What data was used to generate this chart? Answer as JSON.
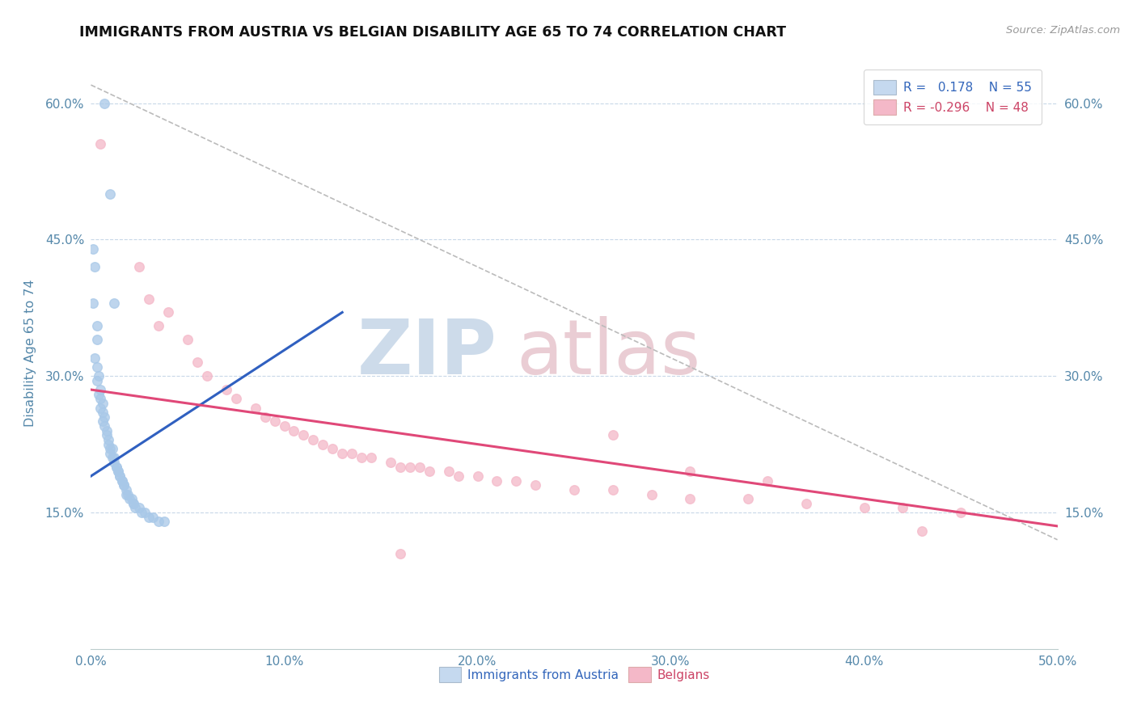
{
  "title": "IMMIGRANTS FROM AUSTRIA VS BELGIAN DISABILITY AGE 65 TO 74 CORRELATION CHART",
  "source": "Source: ZipAtlas.com",
  "ylabel": "Disability Age 65 to 74",
  "xlim": [
    0.0,
    0.5
  ],
  "ylim": [
    0.0,
    0.65
  ],
  "xtick_labels": [
    "0.0%",
    "10.0%",
    "20.0%",
    "30.0%",
    "40.0%",
    "50.0%"
  ],
  "xtick_vals": [
    0.0,
    0.1,
    0.2,
    0.3,
    0.4,
    0.5
  ],
  "ytick_labels": [
    "15.0%",
    "30.0%",
    "45.0%",
    "60.0%"
  ],
  "ytick_vals": [
    0.15,
    0.3,
    0.45,
    0.6
  ],
  "austria_color": "#a8c8e8",
  "belgian_color": "#f4b8c8",
  "austria_line_color": "#3060c0",
  "belgian_line_color": "#e04878",
  "austria_scatter": [
    [
      0.001,
      0.44
    ],
    [
      0.002,
      0.42
    ],
    [
      0.001,
      0.38
    ],
    [
      0.003,
      0.355
    ],
    [
      0.003,
      0.34
    ],
    [
      0.002,
      0.32
    ],
    [
      0.003,
      0.31
    ],
    [
      0.004,
      0.3
    ],
    [
      0.003,
      0.295
    ],
    [
      0.005,
      0.285
    ],
    [
      0.004,
      0.28
    ],
    [
      0.005,
      0.275
    ],
    [
      0.006,
      0.27
    ],
    [
      0.005,
      0.265
    ],
    [
      0.006,
      0.26
    ],
    [
      0.007,
      0.255
    ],
    [
      0.006,
      0.25
    ],
    [
      0.007,
      0.245
    ],
    [
      0.008,
      0.24
    ],
    [
      0.008,
      0.235
    ],
    [
      0.009,
      0.23
    ],
    [
      0.009,
      0.225
    ],
    [
      0.01,
      0.22
    ],
    [
      0.011,
      0.22
    ],
    [
      0.01,
      0.215
    ],
    [
      0.011,
      0.21
    ],
    [
      0.012,
      0.21
    ],
    [
      0.012,
      0.205
    ],
    [
      0.013,
      0.2
    ],
    [
      0.013,
      0.2
    ],
    [
      0.014,
      0.195
    ],
    [
      0.014,
      0.195
    ],
    [
      0.015,
      0.19
    ],
    [
      0.015,
      0.19
    ],
    [
      0.016,
      0.185
    ],
    [
      0.016,
      0.185
    ],
    [
      0.017,
      0.18
    ],
    [
      0.017,
      0.18
    ],
    [
      0.018,
      0.175
    ],
    [
      0.018,
      0.17
    ],
    [
      0.019,
      0.17
    ],
    [
      0.02,
      0.165
    ],
    [
      0.021,
      0.165
    ],
    [
      0.022,
      0.16
    ],
    [
      0.022,
      0.16
    ],
    [
      0.023,
      0.155
    ],
    [
      0.025,
      0.155
    ],
    [
      0.026,
      0.15
    ],
    [
      0.028,
      0.15
    ],
    [
      0.03,
      0.145
    ],
    [
      0.032,
      0.145
    ],
    [
      0.035,
      0.14
    ],
    [
      0.038,
      0.14
    ],
    [
      0.007,
      0.6
    ],
    [
      0.01,
      0.5
    ],
    [
      0.012,
      0.38
    ]
  ],
  "belgian_scatter": [
    [
      0.005,
      0.555
    ],
    [
      0.025,
      0.42
    ],
    [
      0.03,
      0.385
    ],
    [
      0.035,
      0.355
    ],
    [
      0.04,
      0.37
    ],
    [
      0.05,
      0.34
    ],
    [
      0.055,
      0.315
    ],
    [
      0.06,
      0.3
    ],
    [
      0.07,
      0.285
    ],
    [
      0.075,
      0.275
    ],
    [
      0.085,
      0.265
    ],
    [
      0.09,
      0.255
    ],
    [
      0.095,
      0.25
    ],
    [
      0.1,
      0.245
    ],
    [
      0.105,
      0.24
    ],
    [
      0.11,
      0.235
    ],
    [
      0.115,
      0.23
    ],
    [
      0.12,
      0.225
    ],
    [
      0.125,
      0.22
    ],
    [
      0.13,
      0.215
    ],
    [
      0.135,
      0.215
    ],
    [
      0.14,
      0.21
    ],
    [
      0.145,
      0.21
    ],
    [
      0.155,
      0.205
    ],
    [
      0.16,
      0.2
    ],
    [
      0.165,
      0.2
    ],
    [
      0.17,
      0.2
    ],
    [
      0.175,
      0.195
    ],
    [
      0.185,
      0.195
    ],
    [
      0.19,
      0.19
    ],
    [
      0.2,
      0.19
    ],
    [
      0.21,
      0.185
    ],
    [
      0.22,
      0.185
    ],
    [
      0.23,
      0.18
    ],
    [
      0.25,
      0.175
    ],
    [
      0.27,
      0.175
    ],
    [
      0.29,
      0.17
    ],
    [
      0.31,
      0.165
    ],
    [
      0.34,
      0.165
    ],
    [
      0.37,
      0.16
    ],
    [
      0.4,
      0.155
    ],
    [
      0.42,
      0.155
    ],
    [
      0.45,
      0.15
    ],
    [
      0.27,
      0.235
    ],
    [
      0.31,
      0.195
    ],
    [
      0.35,
      0.185
    ],
    [
      0.16,
      0.105
    ],
    [
      0.43,
      0.13
    ]
  ],
  "austria_line_x": [
    0.0,
    0.13
  ],
  "austria_line_y": [
    0.19,
    0.37
  ],
  "belgian_line_x": [
    0.0,
    0.5
  ],
  "belgian_line_y": [
    0.285,
    0.135
  ],
  "diag_line_x": [
    0.0,
    0.5
  ],
  "diag_line_y": [
    0.62,
    0.12
  ]
}
